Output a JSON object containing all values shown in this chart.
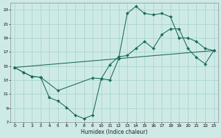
{
  "xlabel": "Humidex (Indice chaleur)",
  "bg_color": "#ceeae7",
  "grid_color": "#aad4d0",
  "line_color": "#1a6b5a",
  "xlim": [
    -0.5,
    23.5
  ],
  "ylim": [
    7,
    24
  ],
  "xticks": [
    0,
    1,
    2,
    3,
    4,
    5,
    6,
    7,
    8,
    9,
    10,
    11,
    12,
    13,
    14,
    15,
    16,
    17,
    18,
    19,
    20,
    21,
    22,
    23
  ],
  "yticks": [
    7,
    9,
    11,
    13,
    15,
    17,
    19,
    21,
    23
  ],
  "line1_x": [
    0,
    1,
    2,
    3,
    4,
    5,
    6,
    7,
    8,
    9,
    10,
    11,
    12,
    13,
    14,
    15,
    16,
    17,
    18,
    19,
    20,
    21,
    22,
    23
  ],
  "line1_y": [
    14.8,
    14.1,
    13.5,
    13.4,
    10.5,
    10.0,
    9.1,
    8.0,
    7.5,
    8.0,
    13.2,
    13.0,
    16.0,
    22.5,
    23.5,
    22.5,
    22.3,
    22.5,
    22.0,
    19.0,
    19.0,
    18.5,
    17.5,
    17.2
  ],
  "line2_x": [
    0,
    1,
    2,
    3,
    5,
    9,
    10,
    11,
    12,
    13,
    14,
    15,
    16,
    17,
    18,
    19,
    20,
    21,
    22,
    23
  ],
  "line2_y": [
    14.8,
    14.1,
    13.5,
    13.4,
    11.5,
    13.3,
    13.2,
    15.2,
    16.3,
    16.5,
    17.5,
    18.5,
    17.5,
    19.5,
    20.3,
    20.3,
    17.5,
    16.2,
    15.3,
    17.2
  ],
  "line3_x": [
    0,
    23
  ],
  "line3_y": [
    14.8,
    17.2
  ]
}
